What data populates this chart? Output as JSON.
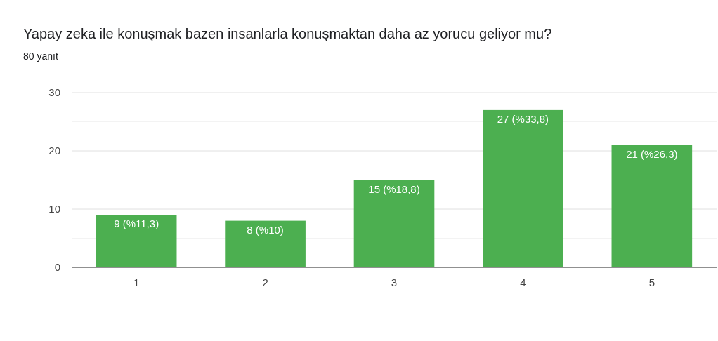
{
  "chart_data": {
    "type": "bar",
    "title": "Yapay zeka ile konuşmak bazen insanlarla konuşmaktan daha az yorucu geliyor mu?",
    "subtitle": "80 yanıt",
    "categories": [
      "1",
      "2",
      "3",
      "4",
      "5"
    ],
    "values": [
      9,
      8,
      15,
      27,
      21
    ],
    "value_labels": [
      "9 (%11,3)",
      "8 (%10)",
      "15 (%18,8)",
      "27 (%33,8)",
      "21 (%26,3)"
    ],
    "color": "#4caf50",
    "ylim": [
      0,
      30
    ],
    "yticks": [
      0,
      {
        "value": 5,
        "label": null
      },
      10,
      {
        "value": 15,
        "label": null
      },
      20,
      {
        "value": 25,
        "label": null
      },
      30
    ],
    "grid": "y"
  }
}
